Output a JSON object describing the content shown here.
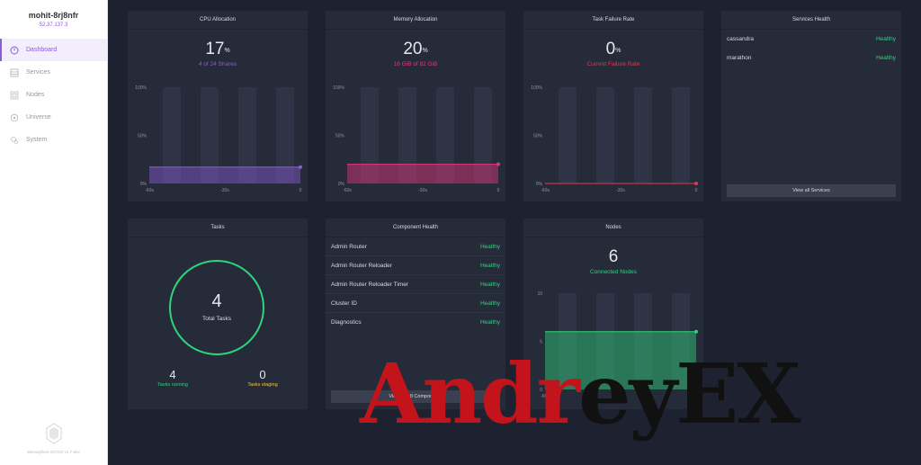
{
  "sidebar": {
    "cluster_name": "mohit-8rj8nfr",
    "cluster_ip": "52.37.137.3",
    "items": [
      {
        "label": "Dashboard",
        "icon": "dashboard-icon",
        "active": true
      },
      {
        "label": "Services",
        "icon": "services-icon",
        "active": false
      },
      {
        "label": "Nodes",
        "icon": "nodes-icon",
        "active": false
      },
      {
        "label": "Universe",
        "icon": "universe-icon",
        "active": false
      },
      {
        "label": "System",
        "icon": "system-icon",
        "active": false
      }
    ],
    "footer_text": "Mesosphere DC/OS v1.7-dev"
  },
  "cpu": {
    "title": "CPU Allocation",
    "value": "17",
    "unit": "%",
    "subtitle": "4 of 24 Shares",
    "color": "#8a5cd6",
    "fill_fraction": 0.17
  },
  "memory": {
    "title": "Memory Allocation",
    "value": "20",
    "unit": "%",
    "subtitle": "16 GiB of 82 GiB",
    "color": "#e6357d",
    "fill_fraction": 0.2
  },
  "failure": {
    "title": "Task Failure Rate",
    "value": "0",
    "unit": "%",
    "subtitle": "Current Failure Rate",
    "color": "#e5364b",
    "fill_fraction": 0
  },
  "percent_axis": {
    "y_ticks": [
      "100%",
      "50%",
      "0%"
    ],
    "x_ticks": [
      "-60s",
      "-30s",
      "0"
    ]
  },
  "services_health": {
    "title": "Services Health",
    "rows": [
      {
        "name": "cassandra",
        "status": "Healthy"
      },
      {
        "name": "marathon",
        "status": "Healthy"
      }
    ],
    "button": "View all Services"
  },
  "tasks": {
    "title": "Tasks",
    "total": "4",
    "total_label": "Total Tasks",
    "running": "4",
    "running_label": "Tasks running",
    "staging": "0",
    "staging_label": "Tasks staging",
    "running_color": "#2ed47a",
    "staging_color": "#f2c744"
  },
  "component_health": {
    "title": "Component Health",
    "rows": [
      {
        "name": "Admin Router",
        "status": "Healthy"
      },
      {
        "name": "Admin Router Reloader",
        "status": "Healthy"
      },
      {
        "name": "Admin Router Reloader Timer",
        "status": "Healthy"
      },
      {
        "name": "Cluster ID",
        "status": "Healthy"
      },
      {
        "name": "Diagnostics",
        "status": "Healthy"
      }
    ],
    "button": "View all 28 Components"
  },
  "nodes": {
    "title": "Nodes",
    "value": "6",
    "subtitle": "Connected Nodes",
    "color": "#2ed47a",
    "y_ticks": [
      "10",
      "5",
      "0"
    ],
    "x_ticks": [
      "-60s",
      "-30s",
      "0"
    ],
    "count": 6,
    "max": 10
  },
  "watermark": {
    "red": "Andr",
    "black": "eyEX"
  }
}
